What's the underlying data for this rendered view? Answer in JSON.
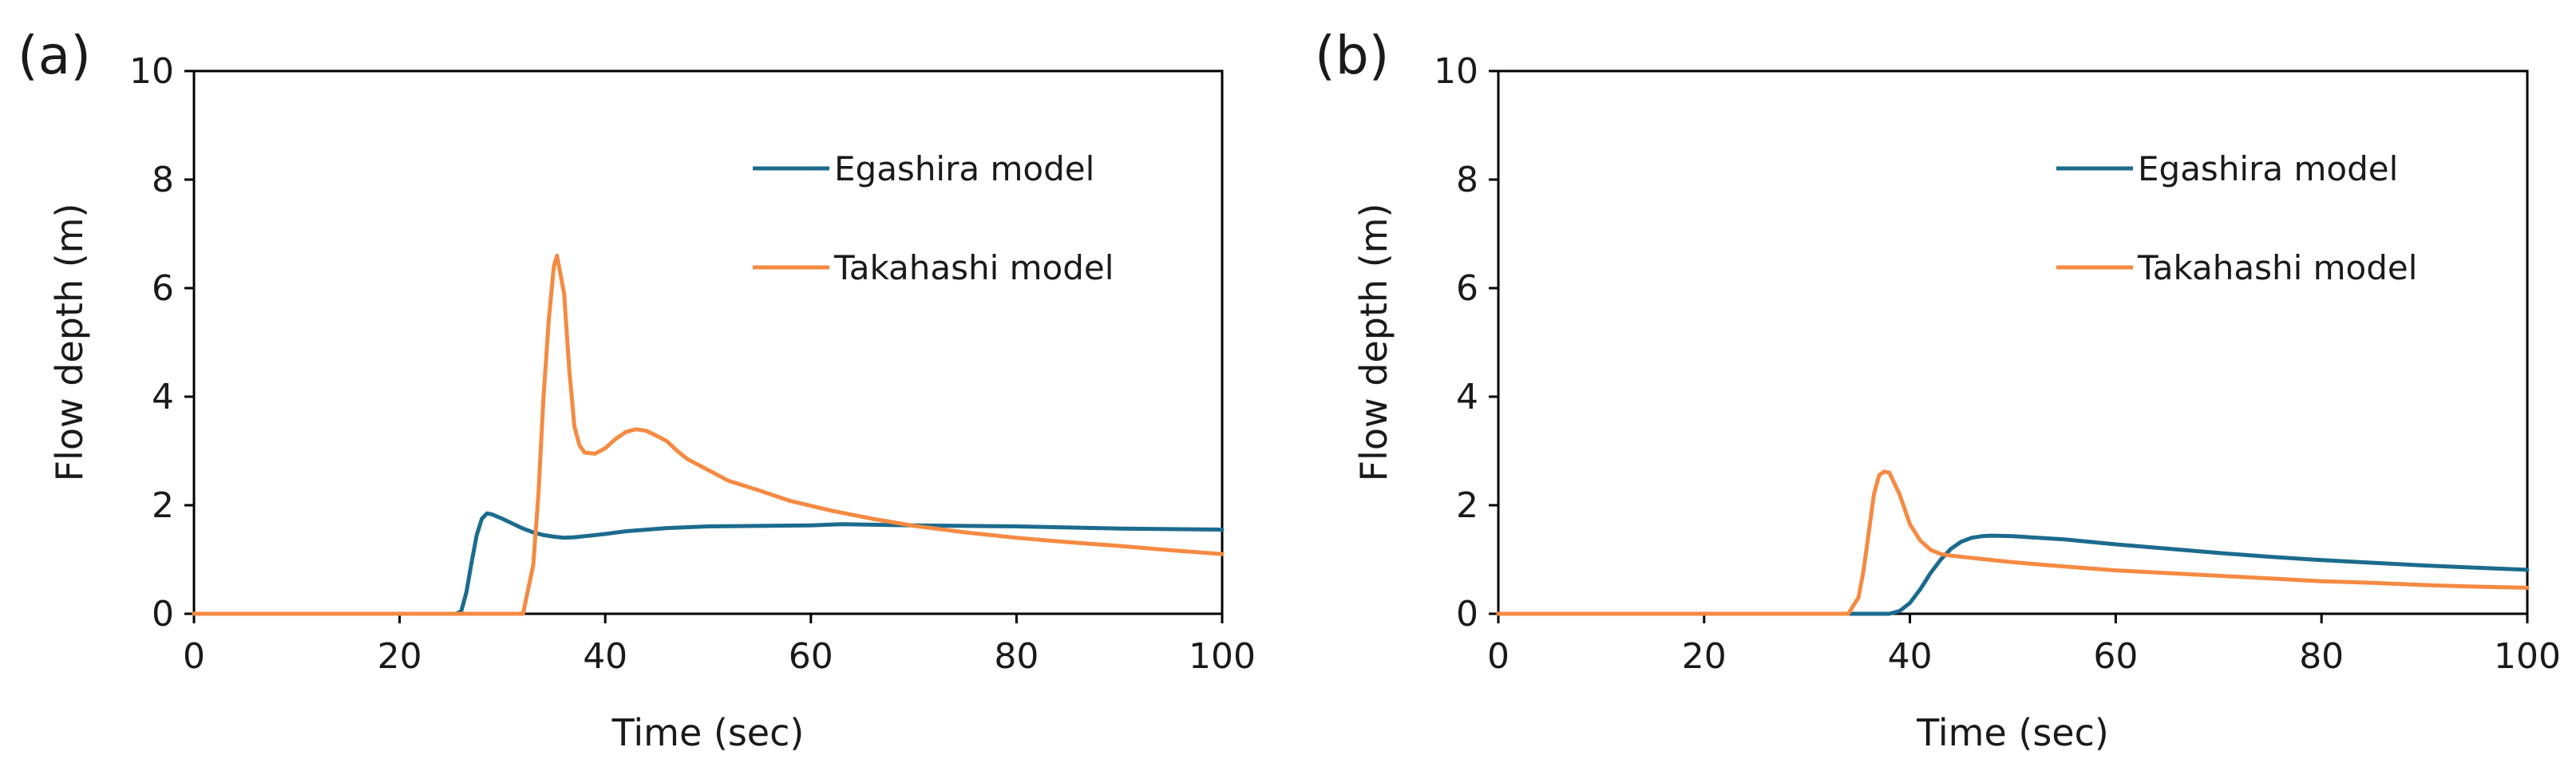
{
  "chart_data": [
    {
      "panel_label": "(a)",
      "type": "line",
      "title": "",
      "xlabel": "Time (sec)",
      "ylabel": "Flow depth (m)",
      "xlim": [
        0,
        100
      ],
      "ylim": [
        0,
        10
      ],
      "xticks": [
        0,
        20,
        40,
        60,
        80,
        100
      ],
      "yticks": [
        0,
        2,
        4,
        6,
        8,
        10
      ],
      "grid": false,
      "legend_position": "top-right",
      "series": [
        {
          "name": "Egashira model",
          "color": "#1c6b8e",
          "points": [
            [
              0,
              0
            ],
            [
              25.5,
              0
            ],
            [
              26,
              0.05
            ],
            [
              26.5,
              0.4
            ],
            [
              27,
              0.95
            ],
            [
              27.5,
              1.45
            ],
            [
              28,
              1.75
            ],
            [
              28.5,
              1.85
            ],
            [
              29,
              1.83
            ],
            [
              30,
              1.75
            ],
            [
              31,
              1.66
            ],
            [
              32,
              1.57
            ],
            [
              33,
              1.5
            ],
            [
              34,
              1.45
            ],
            [
              35,
              1.42
            ],
            [
              36,
              1.4
            ],
            [
              37,
              1.41
            ],
            [
              38,
              1.43
            ],
            [
              40,
              1.47
            ],
            [
              42,
              1.52
            ],
            [
              44,
              1.55
            ],
            [
              46,
              1.58
            ],
            [
              50,
              1.61
            ],
            [
              60,
              1.63
            ],
            [
              63,
              1.65
            ],
            [
              70,
              1.63
            ],
            [
              80,
              1.61
            ],
            [
              90,
              1.57
            ],
            [
              100,
              1.55
            ]
          ]
        },
        {
          "name": "Takahashi model",
          "color": "#f58a42",
          "points": [
            [
              0,
              0
            ],
            [
              32,
              0
            ],
            [
              33,
              0.9
            ],
            [
              33.5,
              2.2
            ],
            [
              34,
              4.0
            ],
            [
              34.5,
              5.4
            ],
            [
              35,
              6.4
            ],
            [
              35.3,
              6.6
            ],
            [
              36,
              5.9
            ],
            [
              36.5,
              4.5
            ],
            [
              37,
              3.45
            ],
            [
              37.5,
              3.1
            ],
            [
              38,
              2.97
            ],
            [
              39,
              2.95
            ],
            [
              40,
              3.05
            ],
            [
              41,
              3.22
            ],
            [
              42,
              3.35
            ],
            [
              43,
              3.4
            ],
            [
              44,
              3.37
            ],
            [
              45,
              3.28
            ],
            [
              46,
              3.18
            ],
            [
              47,
              3.0
            ],
            [
              48,
              2.85
            ],
            [
              50,
              2.65
            ],
            [
              52,
              2.45
            ],
            [
              55,
              2.27
            ],
            [
              58,
              2.08
            ],
            [
              62,
              1.9
            ],
            [
              66,
              1.75
            ],
            [
              70,
              1.62
            ],
            [
              75,
              1.5
            ],
            [
              80,
              1.4
            ],
            [
              85,
              1.32
            ],
            [
              90,
              1.25
            ],
            [
              95,
              1.17
            ],
            [
              100,
              1.1
            ]
          ]
        }
      ]
    },
    {
      "panel_label": "(b)",
      "type": "line",
      "title": "",
      "xlabel": "Time (sec)",
      "ylabel": "Flow depth (m)",
      "xlim": [
        0,
        100
      ],
      "ylim": [
        0,
        10
      ],
      "xticks": [
        0,
        20,
        40,
        60,
        80,
        100
      ],
      "yticks": [
        0,
        2,
        4,
        6,
        8,
        10
      ],
      "grid": false,
      "legend_position": "top-right",
      "series": [
        {
          "name": "Egashira model",
          "color": "#1c6b8e",
          "points": [
            [
              0,
              0
            ],
            [
              38,
              0
            ],
            [
              39,
              0.05
            ],
            [
              40,
              0.2
            ],
            [
              41,
              0.45
            ],
            [
              42,
              0.75
            ],
            [
              43,
              1.0
            ],
            [
              44,
              1.2
            ],
            [
              45,
              1.33
            ],
            [
              46,
              1.4
            ],
            [
              47,
              1.43
            ],
            [
              48,
              1.44
            ],
            [
              50,
              1.43
            ],
            [
              55,
              1.37
            ],
            [
              60,
              1.28
            ],
            [
              65,
              1.2
            ],
            [
              70,
              1.12
            ],
            [
              75,
              1.05
            ],
            [
              80,
              0.99
            ],
            [
              85,
              0.94
            ],
            [
              90,
              0.89
            ],
            [
              95,
              0.85
            ],
            [
              100,
              0.81
            ]
          ]
        },
        {
          "name": "Takahashi model",
          "color": "#f58a42",
          "points": [
            [
              0,
              0
            ],
            [
              34,
              0
            ],
            [
              35,
              0.3
            ],
            [
              35.5,
              0.8
            ],
            [
              36,
              1.5
            ],
            [
              36.5,
              2.2
            ],
            [
              37,
              2.55
            ],
            [
              37.5,
              2.62
            ],
            [
              38,
              2.6
            ],
            [
              39,
              2.2
            ],
            [
              40,
              1.65
            ],
            [
              41,
              1.35
            ],
            [
              42,
              1.18
            ],
            [
              43,
              1.1
            ],
            [
              44,
              1.07
            ],
            [
              46,
              1.03
            ],
            [
              50,
              0.95
            ],
            [
              55,
              0.87
            ],
            [
              60,
              0.8
            ],
            [
              65,
              0.75
            ],
            [
              70,
              0.7
            ],
            [
              75,
              0.65
            ],
            [
              80,
              0.6
            ],
            [
              85,
              0.57
            ],
            [
              90,
              0.53
            ],
            [
              95,
              0.5
            ],
            [
              100,
              0.48
            ]
          ]
        }
      ]
    }
  ]
}
